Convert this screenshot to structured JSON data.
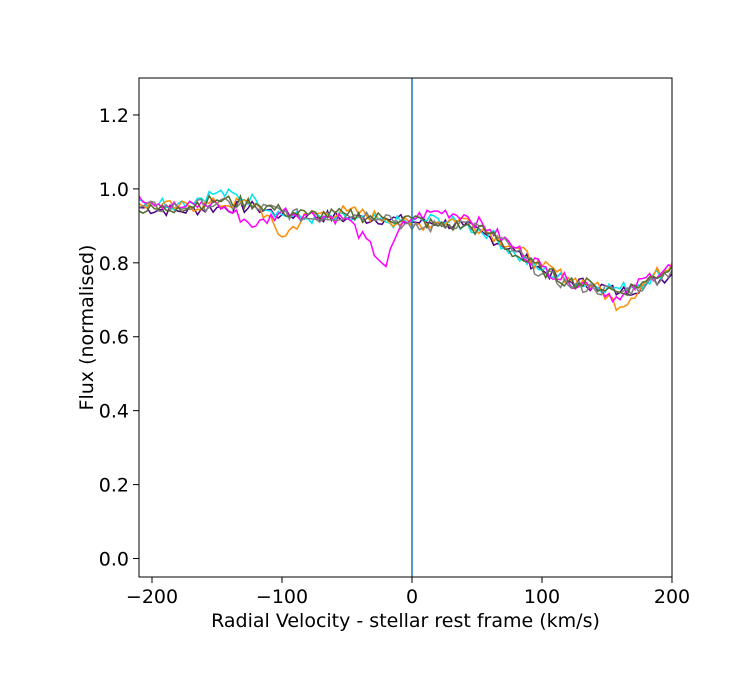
{
  "chart_data": {
    "type": "line",
    "title": "",
    "xlabel": "Radial Velocity - stellar rest frame (km/s)",
    "ylabel": "Flux (normalised)",
    "xlim": [
      -210,
      200
    ],
    "ylim": [
      -0.05,
      1.3
    ],
    "xticks": [
      -200,
      -100,
      0,
      100,
      200
    ],
    "xtick_labels": [
      "−200",
      "−100",
      "0",
      "100",
      "200"
    ],
    "yticks": [
      0.0,
      0.2,
      0.4,
      0.6,
      0.8,
      1.0,
      1.2
    ],
    "ytick_labels": [
      "0.0",
      "0.2",
      "0.4",
      "0.6",
      "0.8",
      "1.0",
      "1.2"
    ],
    "grid": false,
    "legend": "none",
    "vline": {
      "x": 0,
      "color": "#1f77b4"
    },
    "series": [
      {
        "color": "#4b0082",
        "x": [
          -210,
          -180,
          -150,
          -120,
          -100,
          -80,
          -50,
          -20,
          0,
          20,
          40,
          60,
          80,
          100,
          120,
          140,
          160,
          180,
          200
        ],
        "y": [
          0.95,
          0.94,
          0.95,
          0.95,
          0.93,
          0.93,
          0.92,
          0.92,
          0.91,
          0.91,
          0.9,
          0.87,
          0.83,
          0.78,
          0.75,
          0.74,
          0.72,
          0.74,
          0.77
        ]
      },
      {
        "color": "#00e5ee",
        "x": [
          -210,
          -180,
          -150,
          -120,
          -100,
          -80,
          -50,
          -20,
          0,
          20,
          40,
          60,
          80,
          100,
          120,
          140,
          160,
          180,
          200
        ],
        "y": [
          0.97,
          0.96,
          0.99,
          0.97,
          0.93,
          0.92,
          0.92,
          0.91,
          0.91,
          0.92,
          0.9,
          0.88,
          0.82,
          0.78,
          0.75,
          0.74,
          0.73,
          0.75,
          0.79
        ]
      },
      {
        "color": "#ff8c00",
        "x": [
          -210,
          -180,
          -150,
          -120,
          -100,
          -80,
          -50,
          -20,
          0,
          20,
          40,
          60,
          80,
          100,
          120,
          140,
          160,
          180,
          200
        ],
        "y": [
          0.96,
          0.95,
          0.96,
          0.96,
          0.87,
          0.93,
          0.94,
          0.92,
          0.9,
          0.91,
          0.92,
          0.88,
          0.84,
          0.79,
          0.76,
          0.74,
          0.68,
          0.75,
          0.8
        ]
      },
      {
        "color": "#ff00ff",
        "x": [
          -210,
          -180,
          -150,
          -120,
          -100,
          -80,
          -50,
          -20,
          -10,
          0,
          20,
          40,
          60,
          80,
          100,
          120,
          140,
          160,
          180,
          200
        ],
        "y": [
          0.98,
          0.95,
          0.96,
          0.9,
          0.94,
          0.93,
          0.92,
          0.79,
          0.89,
          0.92,
          0.94,
          0.93,
          0.89,
          0.84,
          0.79,
          0.75,
          0.74,
          0.7,
          0.76,
          0.79
        ]
      },
      {
        "color": "#808080",
        "x": [
          -210,
          -180,
          -150,
          -120,
          -100,
          -80,
          -50,
          -20,
          0,
          20,
          40,
          60,
          80,
          100,
          120,
          140,
          160,
          180,
          200
        ],
        "y": [
          0.95,
          0.95,
          0.96,
          0.95,
          0.94,
          0.92,
          0.93,
          0.93,
          0.89,
          0.9,
          0.91,
          0.88,
          0.83,
          0.77,
          0.74,
          0.73,
          0.72,
          0.74,
          0.78
        ]
      },
      {
        "color": "#556b2f",
        "x": [
          -210,
          -180,
          -150,
          -120,
          -100,
          -80,
          -50,
          -20,
          0,
          20,
          40,
          60,
          80,
          100,
          120,
          140,
          160,
          180,
          200
        ],
        "y": [
          0.94,
          0.95,
          0.97,
          0.96,
          0.94,
          0.93,
          0.93,
          0.92,
          0.92,
          0.9,
          0.9,
          0.88,
          0.82,
          0.78,
          0.75,
          0.74,
          0.72,
          0.75,
          0.79
        ]
      }
    ]
  }
}
